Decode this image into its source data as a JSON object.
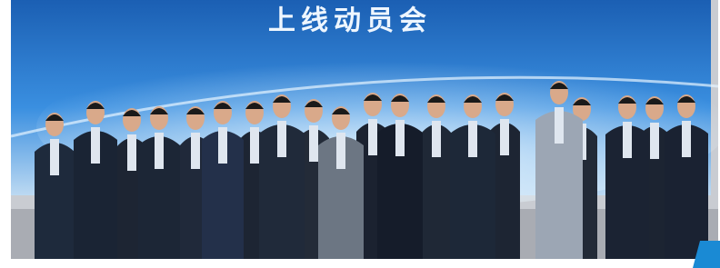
{
  "banner": {
    "text": "上线动员会"
  }
}
